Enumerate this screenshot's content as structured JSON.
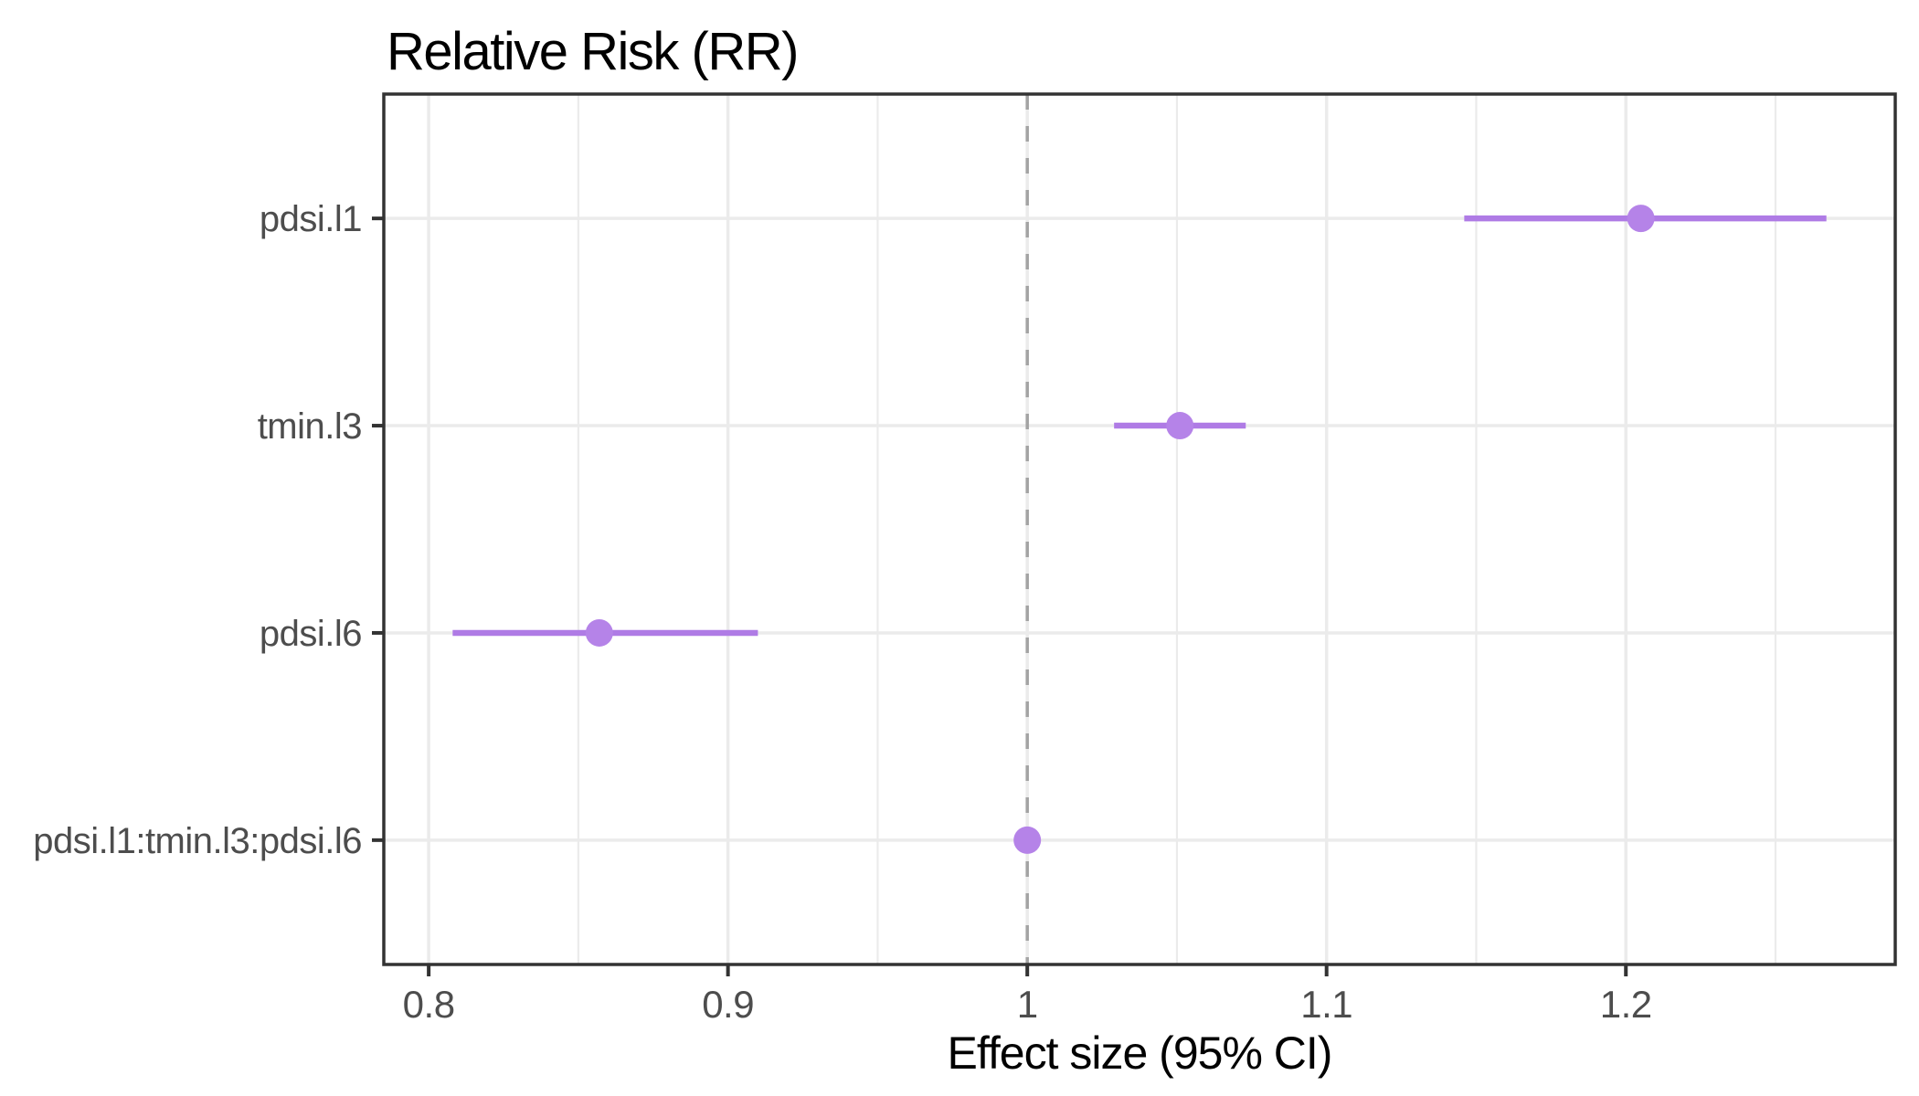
{
  "chart_data": {
    "type": "forest",
    "title": "Relative Risk (RR)",
    "xlabel": "Effect size (95% CI)",
    "ylabel": "",
    "rows": [
      {
        "label": "pdsi.l1",
        "estimate": 1.205,
        "ci_low": 1.146,
        "ci_high": 1.267
      },
      {
        "label": "tmin.l3",
        "estimate": 1.051,
        "ci_low": 1.029,
        "ci_high": 1.073
      },
      {
        "label": "pdsi.l6",
        "estimate": 0.857,
        "ci_low": 0.808,
        "ci_high": 0.91
      },
      {
        "label": "pdsi.l1:tmin.l3:pdsi.l6",
        "estimate": 1.0,
        "ci_low": 0.996,
        "ci_high": 1.004
      }
    ],
    "x_tick_labels": [
      "0.8",
      "0.9",
      "1",
      "1.1",
      "1.2"
    ],
    "x_tick_values": [
      0.8,
      0.9,
      1.0,
      1.1,
      1.2
    ],
    "x_minor_values": [
      0.85,
      0.95,
      1.05,
      1.15,
      1.25
    ],
    "xlim": [
      0.785,
      1.29
    ],
    "reference_line_x": 1.0,
    "grid": true,
    "legend": "none",
    "colors": {
      "point": "#B583E8",
      "interval": "#AF7BE5",
      "grid": "#EBEBEB",
      "panel_border": "#333333",
      "tick_mark": "#333333",
      "reference_line": "#A3A3A3",
      "tick_label": "#4D4D4D",
      "title_text": "#000000"
    }
  }
}
